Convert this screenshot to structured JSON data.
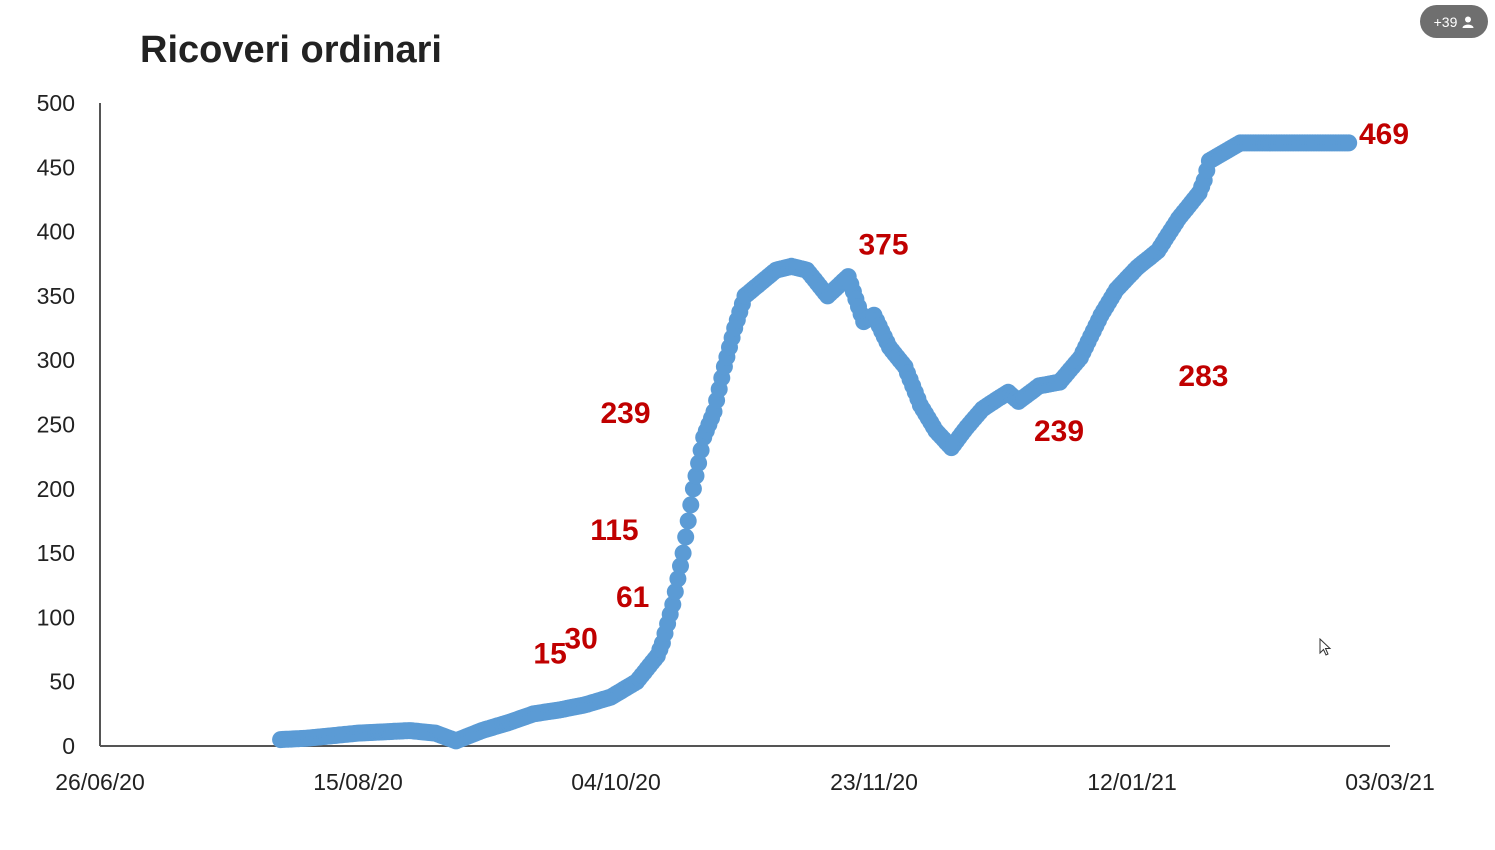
{
  "participants": {
    "count_label": "+39",
    "icon": "person-icon"
  },
  "chart_data": {
    "type": "scatter",
    "title": "Ricoveri ordinari",
    "xlabel": "",
    "ylabel": "",
    "x_ticks": [
      "26/06/20",
      "15/08/20",
      "04/10/20",
      "23/11/20",
      "12/01/21",
      "03/03/21"
    ],
    "y_ticks": [
      "0",
      "50",
      "100",
      "150",
      "200",
      "250",
      "300",
      "350",
      "400",
      "450",
      "500"
    ],
    "ylim": [
      0,
      500
    ],
    "xlim": [
      "2020-06-26",
      "2021-03-03"
    ],
    "series": [
      {
        "x": [
          "2020-07-31",
          "2020-08-05",
          "2020-08-10",
          "2020-08-15",
          "2020-08-20",
          "2020-08-25",
          "2020-08-30",
          "2020-09-03",
          "2020-09-08",
          "2020-09-13",
          "2020-09-18",
          "2020-09-23",
          "2020-09-28",
          "2020-10-03",
          "2020-10-08",
          "2020-10-12",
          "2020-10-13",
          "2020-10-15",
          "2020-10-17",
          "2020-10-19",
          "2020-10-21",
          "2020-10-23",
          "2020-10-25",
          "2020-10-27",
          "2020-10-29",
          "2020-11-01",
          "2020-11-04",
          "2020-11-07",
          "2020-11-10",
          "2020-11-14",
          "2020-11-18",
          "2020-11-21",
          "2020-11-23",
          "2020-11-26",
          "2020-11-29",
          "2020-12-02",
          "2020-12-05",
          "2020-12-08",
          "2020-12-11",
          "2020-12-14",
          "2020-12-17",
          "2020-12-19",
          "2020-12-21",
          "2020-12-23",
          "2020-12-25",
          "2020-12-29",
          "2021-01-02",
          "2021-01-06",
          "2021-01-09",
          "2021-01-13",
          "2021-01-17",
          "2021-01-21",
          "2021-01-25",
          "2021-01-26",
          "2021-01-27",
          "2021-01-30",
          "2021-02-02",
          "2021-02-05",
          "2021-02-08",
          "2021-02-10",
          "2021-02-13",
          "2021-02-16",
          "2021-02-19",
          "2021-02-21",
          "2021-02-23"
        ],
        "y": [
          5,
          6,
          8,
          10,
          11,
          12,
          10,
          4,
          12,
          18,
          25,
          28,
          32,
          38,
          50,
          70,
          80,
          110,
          150,
          200,
          240,
          260,
          295,
          325,
          350,
          360,
          370,
          373,
          370,
          350,
          365,
          330,
          335,
          310,
          295,
          265,
          245,
          232,
          248,
          262,
          270,
          275,
          268,
          274,
          280,
          283,
          302,
          335,
          355,
          372,
          385,
          410,
          430,
          440,
          455,
          462,
          469,
          469,
          469,
          469,
          469,
          469,
          469,
          469,
          469
        ]
      }
    ],
    "data_labels": [
      {
        "text": "15",
        "x": "2020-09-18",
        "y": 64
      },
      {
        "text": "30",
        "x": "2020-09-24",
        "y": 76
      },
      {
        "text": "61",
        "x": "2020-10-04",
        "y": 108
      },
      {
        "text": "115",
        "x": "2020-09-29",
        "y": 160
      },
      {
        "text": "239",
        "x": "2020-10-01",
        "y": 251
      },
      {
        "text": "375",
        "x": "2020-11-20",
        "y": 382
      },
      {
        "text": "239",
        "x": "2020-12-24",
        "y": 237
      },
      {
        "text": "283",
        "x": "2021-01-21",
        "y": 280
      },
      {
        "text": "469",
        "x": "2021-02-25",
        "y": 468
      }
    ],
    "colors": {
      "points": "#5b9bd5",
      "labels": "#c00000",
      "axis": "#555555",
      "text": "#222222"
    },
    "grid": false,
    "legend": "none"
  }
}
